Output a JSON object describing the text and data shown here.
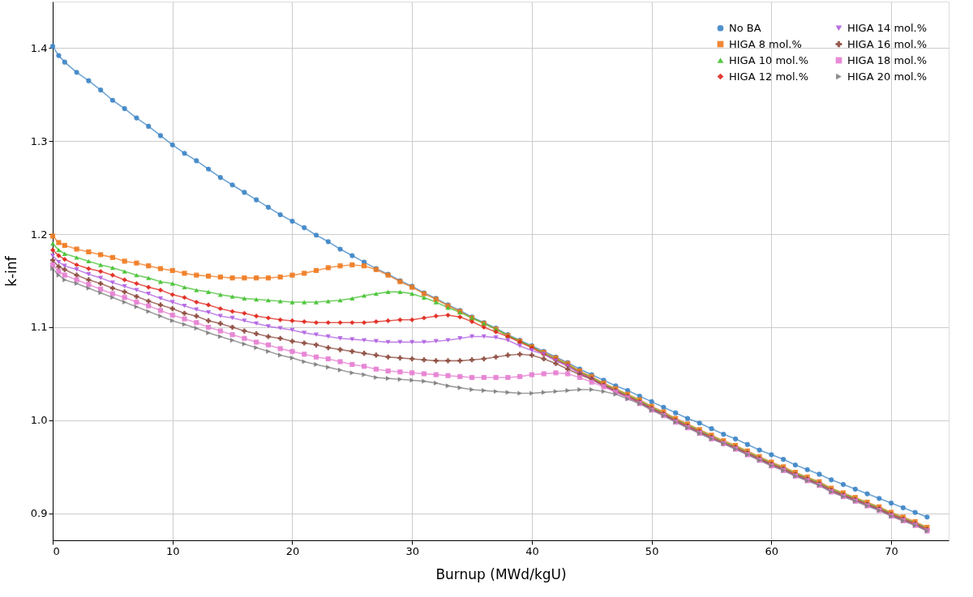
{
  "chart_data": {
    "type": "line",
    "xlabel": "Burnup (MWd/kgU)",
    "ylabel": "k-inf",
    "x": [
      0,
      0.5,
      1,
      2,
      3,
      4,
      5,
      6,
      7,
      8,
      9,
      10,
      11,
      12,
      13,
      14,
      15,
      16,
      17,
      18,
      19,
      20,
      21,
      22,
      23,
      24,
      25,
      26,
      27,
      28,
      29,
      30,
      31,
      32,
      33,
      34,
      35,
      36,
      37,
      38,
      39,
      40,
      41,
      42,
      43,
      44,
      45,
      46,
      47,
      48,
      49,
      50,
      51,
      52,
      53,
      54,
      55,
      56,
      57,
      58,
      59,
      60,
      61,
      62,
      63,
      64,
      65,
      66,
      67,
      68,
      69,
      70,
      71,
      72,
      73
    ],
    "xlim": [
      0,
      74.8
    ],
    "xticks": [
      0,
      10,
      20,
      30,
      40,
      50,
      60,
      70
    ],
    "ylim": [
      0.871,
      1.45
    ],
    "yticks": [
      0.9,
      {
        "value": 1.0,
        "label": "1.0"
      },
      1.1,
      1.2,
      1.3,
      1.4
    ],
    "grid": true,
    "legend": "top right",
    "line_style": "solid",
    "series": [
      {
        "name": "No BA",
        "color": "#3d85c6",
        "marker": "circle",
        "values": [
          1.402,
          1.392,
          1.385,
          1.374,
          1.365,
          1.355,
          1.344,
          1.335,
          1.325,
          1.316,
          1.306,
          1.296,
          1.287,
          1.279,
          1.27,
          1.261,
          1.253,
          1.245,
          1.237,
          1.229,
          1.221,
          1.214,
          1.207,
          1.199,
          1.192,
          1.184,
          1.177,
          1.17,
          1.163,
          1.157,
          1.15,
          1.144,
          1.137,
          1.131,
          1.124,
          1.118,
          1.111,
          1.105,
          1.099,
          1.092,
          1.086,
          1.08,
          1.074,
          1.068,
          1.062,
          1.055,
          1.049,
          1.043,
          1.037,
          1.032,
          1.026,
          1.02,
          1.014,
          1.008,
          1.002,
          0.997,
          0.991,
          0.985,
          0.98,
          0.974,
          0.968,
          0.963,
          0.958,
          0.952,
          0.947,
          0.942,
          0.936,
          0.931,
          0.926,
          0.921,
          0.916,
          0.911,
          0.906,
          0.901,
          0.896
        ]
      },
      {
        "name": "HIGA 8 mol.%",
        "color": "#f07a1f",
        "marker": "square",
        "values": [
          1.198,
          1.191,
          1.188,
          1.184,
          1.181,
          1.178,
          1.175,
          1.171,
          1.169,
          1.166,
          1.163,
          1.161,
          1.158,
          1.156,
          1.155,
          1.154,
          1.153,
          1.153,
          1.153,
          1.153,
          1.154,
          1.156,
          1.158,
          1.161,
          1.164,
          1.166,
          1.167,
          1.166,
          1.162,
          1.156,
          1.149,
          1.143,
          1.136,
          1.13,
          1.123,
          1.117,
          1.11,
          1.104,
          1.098,
          1.091,
          1.085,
          1.079,
          1.073,
          1.067,
          1.061,
          1.053,
          1.047,
          1.04,
          1.034,
          1.028,
          1.022,
          1.015,
          1.009,
          1.002,
          0.996,
          0.99,
          0.984,
          0.978,
          0.973,
          0.967,
          0.961,
          0.955,
          0.95,
          0.944,
          0.939,
          0.934,
          0.927,
          0.922,
          0.917,
          0.912,
          0.907,
          0.901,
          0.896,
          0.891,
          0.885
        ]
      },
      {
        "name": "HIGA 10 mol.%",
        "color": "#45c232",
        "marker": "triangle",
        "values": [
          1.19,
          1.183,
          1.179,
          1.175,
          1.171,
          1.167,
          1.164,
          1.16,
          1.156,
          1.153,
          1.149,
          1.147,
          1.143,
          1.14,
          1.138,
          1.135,
          1.133,
          1.131,
          1.13,
          1.129,
          1.128,
          1.127,
          1.127,
          1.127,
          1.128,
          1.129,
          1.131,
          1.134,
          1.136,
          1.138,
          1.138,
          1.136,
          1.132,
          1.127,
          1.121,
          1.116,
          1.11,
          1.104,
          1.098,
          1.091,
          1.085,
          1.079,
          1.072,
          1.066,
          1.06,
          1.052,
          1.046,
          1.039,
          1.033,
          1.027,
          1.021,
          1.014,
          1.008,
          1.001,
          0.995,
          0.989,
          0.983,
          0.977,
          0.972,
          0.966,
          0.96,
          0.954,
          0.949,
          0.943,
          0.938,
          0.933,
          0.926,
          0.921,
          0.916,
          0.911,
          0.906,
          0.9,
          0.895,
          0.89,
          0.884
        ]
      },
      {
        "name": "HIGA 12 mol.%",
        "color": "#e0281e",
        "marker": "diamond",
        "values": [
          1.183,
          1.177,
          1.173,
          1.167,
          1.163,
          1.16,
          1.156,
          1.151,
          1.147,
          1.143,
          1.14,
          1.135,
          1.132,
          1.127,
          1.124,
          1.12,
          1.117,
          1.115,
          1.112,
          1.11,
          1.108,
          1.107,
          1.106,
          1.105,
          1.105,
          1.105,
          1.105,
          1.105,
          1.106,
          1.107,
          1.108,
          1.108,
          1.11,
          1.112,
          1.113,
          1.111,
          1.106,
          1.1,
          1.095,
          1.09,
          1.084,
          1.078,
          1.071,
          1.065,
          1.059,
          1.051,
          1.045,
          1.038,
          1.032,
          1.026,
          1.02,
          1.013,
          1.007,
          1.0,
          0.994,
          0.988,
          0.982,
          0.976,
          0.971,
          0.965,
          0.959,
          0.953,
          0.948,
          0.942,
          0.937,
          0.932,
          0.925,
          0.92,
          0.915,
          0.91,
          0.905,
          0.899,
          0.894,
          0.889,
          0.883
        ]
      },
      {
        "name": "HIGA 14 mol.%",
        "color": "#b061e0",
        "marker": "triangle-down",
        "values": [
          1.177,
          1.17,
          1.166,
          1.162,
          1.157,
          1.153,
          1.148,
          1.144,
          1.14,
          1.136,
          1.131,
          1.127,
          1.123,
          1.119,
          1.116,
          1.112,
          1.11,
          1.107,
          1.104,
          1.101,
          1.099,
          1.097,
          1.094,
          1.092,
          1.09,
          1.088,
          1.087,
          1.086,
          1.085,
          1.084,
          1.084,
          1.084,
          1.084,
          1.085,
          1.086,
          1.088,
          1.09,
          1.09,
          1.089,
          1.086,
          1.08,
          1.075,
          1.071,
          1.064,
          1.058,
          1.05,
          1.044,
          1.037,
          1.031,
          1.025,
          1.019,
          1.012,
          1.006,
          0.999,
          0.993,
          0.987,
          0.981,
          0.975,
          0.97,
          0.964,
          0.958,
          0.952,
          0.947,
          0.941,
          0.936,
          0.931,
          0.924,
          0.919,
          0.914,
          0.909,
          0.904,
          0.898,
          0.893,
          0.888,
          0.882
        ]
      },
      {
        "name": "HIGA 16 mol.%",
        "color": "#8c4a3e",
        "marker": "cross",
        "values": [
          1.172,
          1.165,
          1.162,
          1.156,
          1.151,
          1.147,
          1.142,
          1.138,
          1.133,
          1.128,
          1.124,
          1.12,
          1.115,
          1.112,
          1.107,
          1.104,
          1.1,
          1.096,
          1.093,
          1.09,
          1.088,
          1.085,
          1.083,
          1.081,
          1.078,
          1.076,
          1.074,
          1.072,
          1.07,
          1.068,
          1.067,
          1.066,
          1.065,
          1.064,
          1.064,
          1.064,
          1.065,
          1.066,
          1.068,
          1.07,
          1.071,
          1.07,
          1.066,
          1.061,
          1.055,
          1.049,
          1.044,
          1.037,
          1.031,
          1.025,
          1.019,
          1.012,
          1.006,
          0.999,
          0.993,
          0.987,
          0.981,
          0.975,
          0.97,
          0.964,
          0.958,
          0.952,
          0.947,
          0.941,
          0.936,
          0.931,
          0.924,
          0.919,
          0.914,
          0.909,
          0.904,
          0.898,
          0.893,
          0.888,
          0.882
        ]
      },
      {
        "name": "HIGA 18 mol.%",
        "color": "#e57ed2",
        "marker": "square",
        "values": [
          1.167,
          1.16,
          1.156,
          1.151,
          1.146,
          1.141,
          1.136,
          1.132,
          1.127,
          1.123,
          1.118,
          1.113,
          1.109,
          1.105,
          1.1,
          1.096,
          1.092,
          1.088,
          1.084,
          1.081,
          1.077,
          1.074,
          1.071,
          1.068,
          1.066,
          1.063,
          1.06,
          1.058,
          1.055,
          1.053,
          1.052,
          1.051,
          1.05,
          1.049,
          1.048,
          1.047,
          1.046,
          1.046,
          1.046,
          1.046,
          1.047,
          1.049,
          1.05,
          1.051,
          1.05,
          1.046,
          1.041,
          1.036,
          1.03,
          1.024,
          1.018,
          1.011,
          1.005,
          0.998,
          0.992,
          0.986,
          0.98,
          0.975,
          0.969,
          0.963,
          0.957,
          0.951,
          0.946,
          0.94,
          0.935,
          0.93,
          0.923,
          0.918,
          0.913,
          0.908,
          0.903,
          0.897,
          0.892,
          0.887,
          0.881
        ]
      },
      {
        "name": "HIGA 20 mol.%",
        "color": "#808080",
        "marker": "triangle-right",
        "values": [
          1.163,
          1.156,
          1.151,
          1.147,
          1.142,
          1.137,
          1.132,
          1.127,
          1.122,
          1.117,
          1.112,
          1.107,
          1.103,
          1.099,
          1.094,
          1.09,
          1.086,
          1.082,
          1.078,
          1.074,
          1.07,
          1.067,
          1.063,
          1.06,
          1.057,
          1.054,
          1.051,
          1.049,
          1.046,
          1.045,
          1.044,
          1.043,
          1.042,
          1.04,
          1.037,
          1.035,
          1.033,
          1.032,
          1.031,
          1.03,
          1.029,
          1.029,
          1.03,
          1.031,
          1.032,
          1.033,
          1.033,
          1.031,
          1.028,
          1.023,
          1.018,
          1.011,
          1.005,
          0.998,
          0.992,
          0.986,
          0.98,
          0.975,
          0.969,
          0.963,
          0.957,
          0.951,
          0.946,
          0.94,
          0.935,
          0.93,
          0.923,
          0.918,
          0.913,
          0.908,
          0.903,
          0.897,
          0.892,
          0.887,
          0.881
        ]
      }
    ]
  }
}
